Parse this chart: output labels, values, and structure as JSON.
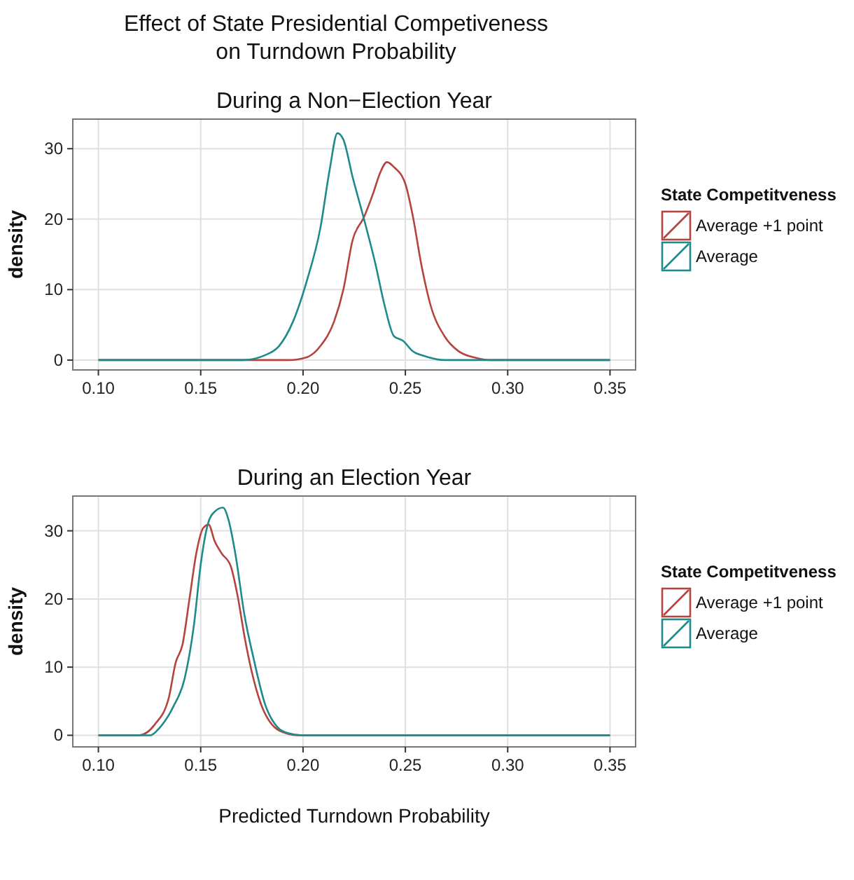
{
  "chart_data": [
    {
      "type": "line",
      "title": "Effect of State Presidential Competiveness\non Turndown Probability",
      "subtitle": "During a Non−Election Year",
      "ylabel": "density",
      "legend_title": "State Competitveness",
      "legend": "right",
      "grid": true,
      "line_style": "solid",
      "xlim": [
        0.0875,
        0.3625
      ],
      "xticks": [
        {
          "value": 0.1,
          "label": "0.10"
        },
        {
          "value": 0.15,
          "label": "0.15"
        },
        {
          "value": 0.2,
          "label": "0.20"
        },
        {
          "value": 0.25,
          "label": "0.25"
        },
        {
          "value": 0.3,
          "label": "0.30"
        },
        {
          "value": 0.35,
          "label": "0.35"
        }
      ],
      "ylim": [
        -1.4,
        34.2
      ],
      "yticks": [
        0,
        10,
        20,
        30
      ],
      "series": [
        {
          "name": "Average +1 point",
          "color": "#b5443f",
          "x": [
            0.1,
            0.1928,
            0.2018,
            0.2085,
            0.2152,
            0.2197,
            0.2242,
            0.2298,
            0.2343,
            0.2377,
            0.241,
            0.2444,
            0.25,
            0.2534,
            0.2579,
            0.2624,
            0.2691,
            0.2758,
            0.2848,
            0.2916,
            0.35
          ],
          "values": [
            0,
            0,
            0.4,
            2,
            5.5,
            10,
            17,
            20.3,
            23.7,
            26.6,
            28.1,
            27.4,
            25,
            20.8,
            13.4,
            7.7,
            3.4,
            1.3,
            0.3,
            0,
            0
          ]
        },
        {
          "name": "Average",
          "color": "#1f8a8a",
          "x": [
            0.1,
            0.1706,
            0.1815,
            0.1883,
            0.195,
            0.2018,
            0.2085,
            0.213,
            0.2168,
            0.2197,
            0.2242,
            0.2298,
            0.2354,
            0.2399,
            0.2444,
            0.249,
            0.2534,
            0.2602,
            0.2691,
            0.35
          ],
          "values": [
            0,
            0,
            0.7,
            2,
            5.4,
            11.2,
            18.8,
            27,
            32.2,
            31.3,
            26,
            20,
            13.6,
            7.7,
            3.4,
            2.7,
            1.3,
            0.5,
            0,
            0
          ]
        }
      ]
    },
    {
      "type": "line",
      "title": "During an Election Year",
      "xlabel": "Predicted Turndown Probability",
      "ylabel": "density",
      "legend_title": "State Competitveness",
      "legend": "right",
      "grid": true,
      "line_style": "solid",
      "xlim": [
        0.0875,
        0.3625
      ],
      "xticks": [
        {
          "value": 0.1,
          "label": "0.10"
        },
        {
          "value": 0.15,
          "label": "0.15"
        },
        {
          "value": 0.2,
          "label": "0.20"
        },
        {
          "value": 0.25,
          "label": "0.25"
        },
        {
          "value": 0.3,
          "label": "0.30"
        },
        {
          "value": 0.35,
          "label": "0.35"
        }
      ],
      "ylim": [
        -1.7,
        35.1
      ],
      "yticks": [
        0,
        10,
        20,
        30
      ],
      "series": [
        {
          "name": "Average +1 point",
          "color": "#b5443f",
          "x": [
            0.1,
            0.1198,
            0.1276,
            0.1344,
            0.1377,
            0.1411,
            0.1445,
            0.1479,
            0.1512,
            0.1539,
            0.1568,
            0.1602,
            0.1647,
            0.168,
            0.1714,
            0.1748,
            0.1793,
            0.186,
            0.1928,
            0.1973,
            0.35
          ],
          "values": [
            0,
            0,
            1.6,
            5.5,
            10.6,
            13.3,
            20,
            26.8,
            30.4,
            30.9,
            28.5,
            26.7,
            24.8,
            20.5,
            14.5,
            9.5,
            4.7,
            1.2,
            0.2,
            0,
            0
          ]
        },
        {
          "name": "Average",
          "color": "#1f8a8a",
          "x": [
            0.1,
            0.1254,
            0.1299,
            0.1366,
            0.1422,
            0.1467,
            0.1501,
            0.1535,
            0.1568,
            0.1609,
            0.1636,
            0.167,
            0.1714,
            0.1759,
            0.1815,
            0.1872,
            0.1928,
            0.1996,
            0.35
          ],
          "values": [
            0,
            0,
            1.1,
            4.2,
            8.4,
            16.2,
            25.3,
            31,
            32.8,
            33.4,
            31.6,
            26.5,
            17.6,
            11.2,
            4.5,
            1.3,
            0.3,
            0,
            0
          ]
        }
      ]
    }
  ]
}
